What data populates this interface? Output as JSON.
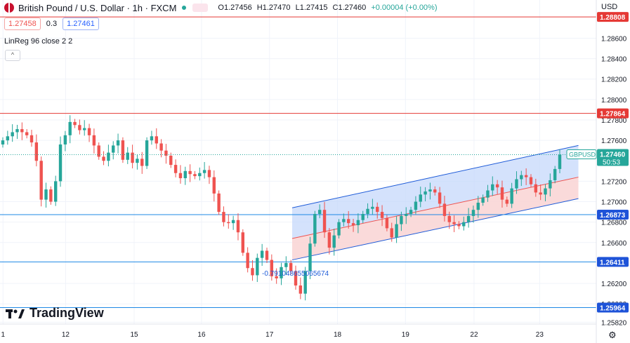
{
  "header": {
    "title": "British Pound / U.S. Dollar · 1h · FXCM",
    "ohlc": {
      "o": "O1.27456",
      "h": "H1.27470",
      "l": "L1.27415",
      "c": "C1.27460",
      "chg": "+0.00004 (+0.00%)"
    }
  },
  "trade": {
    "sell": "1.27458",
    "spread": "0.3",
    "buy": "1.27461"
  },
  "indicator": {
    "label": "LinReg 96 close 2 2",
    "collapse": "^"
  },
  "price_scale": {
    "currency": "USD"
  },
  "brand": {
    "name": "TradingView"
  },
  "annotation": {
    "regression_text": "-0.791048655065674"
  },
  "colors": {
    "up": "#26a69a",
    "down": "#ef5350",
    "hline_red": "#e53935",
    "hline_blue": "#1e88e5",
    "channel_upper_fill": "#c6d8fb",
    "channel_lower_fill": "#f9d3d3",
    "channel_line": "#1e5bd8",
    "mid_line": "#ef5350"
  },
  "chart_data": {
    "type": "candlestick",
    "symbol": "GBPUSD",
    "last_price": "1.27460",
    "countdown": "50:53",
    "ylim": [
      1.2572,
      1.2896
    ],
    "y_ticks": [
      "1.28600",
      "1.28400",
      "1.28200",
      "1.28000",
      "1.27800",
      "1.27600",
      "1.27200",
      "1.27000",
      "1.26800",
      "1.26600",
      "1.26200",
      "1.26000",
      "1.25820"
    ],
    "x_ticks": [
      "1",
      "12",
      "15",
      "16",
      "17",
      "18",
      "19",
      "22",
      "23"
    ],
    "horizontal_lines": [
      {
        "price": "1.28808",
        "kind": "resistance",
        "color": "red"
      },
      {
        "price": "1.27864",
        "kind": "resistance",
        "color": "red"
      },
      {
        "price": "1.26873",
        "kind": "support",
        "color": "blue"
      },
      {
        "price": "1.26411",
        "kind": "support",
        "color": "blue"
      },
      {
        "price": "1.25964",
        "kind": "support",
        "color": "blue"
      }
    ],
    "regression_channel": {
      "x_range": [
        0,
        0.97
      ],
      "upper": [
        1.2694,
        1.2755
      ],
      "middle": [
        1.2664,
        1.2724
      ],
      "lower": [
        1.2643,
        1.2703
      ]
    },
    "closes": [
      1.276,
      1.2764,
      1.2768,
      1.2771,
      1.2768,
      1.2765,
      1.2758,
      1.274,
      1.2702,
      1.2712,
      1.27,
      1.272,
      1.2756,
      1.2765,
      1.2778,
      1.2775,
      1.277,
      1.2772,
      1.2765,
      1.2755,
      1.2744,
      1.274,
      1.2748,
      1.2755,
      1.276,
      1.2741,
      1.2748,
      1.2738,
      1.2742,
      1.2735,
      1.276,
      1.2764,
      1.2757,
      1.275,
      1.2745,
      1.2736,
      1.2728,
      1.2723,
      1.273,
      1.2727,
      1.2725,
      1.2728,
      1.2731,
      1.2724,
      1.2708,
      1.269,
      1.268,
      1.2679,
      1.2682,
      1.267,
      1.265,
      1.2635,
      1.2628,
      1.2645,
      1.2652,
      1.2643,
      1.2627,
      1.2625,
      1.2636,
      1.264,
      1.2632,
      1.2618,
      1.261,
      1.2632,
      1.2659,
      1.2688,
      1.2692,
      1.267,
      1.2655,
      1.2667,
      1.268,
      1.2683,
      1.2679,
      1.2677,
      1.2682,
      1.2688,
      1.2693,
      1.2695,
      1.269,
      1.2684,
      1.2674,
      1.2665,
      1.2678,
      1.2686,
      1.2688,
      1.2692,
      1.27,
      1.2707,
      1.271,
      1.2712,
      1.2709,
      1.2698,
      1.2686,
      1.268,
      1.2678,
      1.2676,
      1.268,
      1.2686,
      1.2692,
      1.2699,
      1.2704,
      1.2711,
      1.2717,
      1.2714,
      1.2702,
      1.2698,
      1.2713,
      1.2722,
      1.2726,
      1.2724,
      1.2717,
      1.2709,
      1.2707,
      1.2713,
      1.2721,
      1.2732,
      1.2746
    ]
  }
}
